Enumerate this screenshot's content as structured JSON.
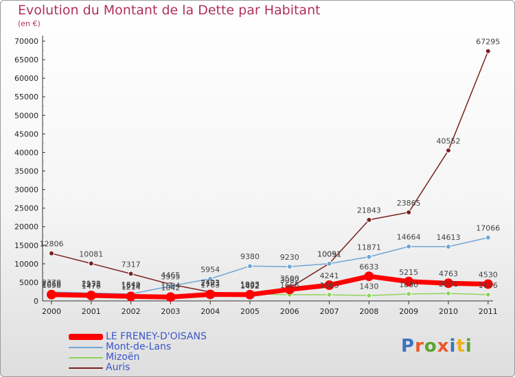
{
  "title": "Evolution du Montant de la Dette par Habitant",
  "subtitle": "(en €)",
  "logo": {
    "text": "Proxiti",
    "colors": [
      "#3a73c0",
      "#e8582c",
      "#5aa532",
      "#e8582c",
      "#3a73c0",
      "#f0b020",
      "#5aa532"
    ]
  },
  "chart_data": {
    "type": "line",
    "title": "Evolution du Montant de la Dette par Habitant",
    "subtitle": "(en €)",
    "xlabel": "",
    "ylabel": "",
    "x": [
      "2000",
      "2001",
      "2002",
      "2003",
      "2004",
      "2005",
      "2006",
      "2007",
      "2008",
      "2009",
      "2010",
      "2011"
    ],
    "ylim": [
      0,
      70000
    ],
    "yticks": [
      0,
      5000,
      10000,
      15000,
      20000,
      25000,
      30000,
      35000,
      40000,
      45000,
      50000,
      55000,
      60000,
      65000,
      70000
    ],
    "grid": false,
    "legend_position": "bottom-left",
    "series": [
      {
        "name": "LE FRENEY-D'OISANS",
        "color": "#ff0000",
        "values": [
          1698,
          1476,
          1214,
          1042,
          1763,
          1692,
          3082,
          4241,
          6633,
          5215,
          4763,
          4530
        ]
      },
      {
        "name": "Mont-de-Lans",
        "color": "#6fa6d6",
        "values": [
          2379,
          2133,
          1849,
          3995,
          5954,
          9380,
          9230,
          10051,
          11871,
          14664,
          14613,
          17066
        ]
      },
      {
        "name": "Mizoën",
        "color": "#8fd45a",
        "values": [
          2056,
          1978,
          1614,
          1584,
          2173,
          1933,
          1666,
          1665,
          1430,
          1880,
          2001,
          1676
        ]
      },
      {
        "name": "Auris",
        "color": "#7a2020",
        "values": [
          12806,
          10081,
          7317,
          4465,
          2403,
          1492,
          3500,
          10091,
          21843,
          23865,
          40552,
          67295
        ]
      }
    ]
  }
}
